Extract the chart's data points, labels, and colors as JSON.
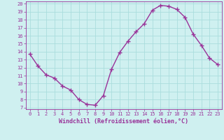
{
  "x": [
    0,
    1,
    2,
    3,
    4,
    5,
    6,
    7,
    8,
    9,
    10,
    11,
    12,
    13,
    14,
    15,
    16,
    17,
    18,
    19,
    20,
    21,
    22,
    23
  ],
  "y": [
    13.7,
    12.2,
    11.1,
    10.7,
    9.7,
    9.2,
    8.0,
    7.4,
    7.3,
    8.5,
    11.8,
    13.9,
    15.3,
    16.5,
    17.5,
    19.2,
    19.8,
    19.7,
    19.3,
    18.3,
    16.2,
    14.8,
    13.2,
    12.4
  ],
  "line_color": "#993399",
  "marker": "+",
  "markersize": 4,
  "linewidth": 1.0,
  "xlabel": "Windchill (Refroidissement éolien,°C)",
  "xlim": [
    -0.5,
    23.5
  ],
  "ylim": [
    6.8,
    20.3
  ],
  "yticks": [
    7,
    8,
    9,
    10,
    11,
    12,
    13,
    14,
    15,
    16,
    17,
    18,
    19,
    20
  ],
  "xticks": [
    0,
    1,
    2,
    3,
    4,
    5,
    6,
    7,
    8,
    9,
    10,
    11,
    12,
    13,
    14,
    15,
    16,
    17,
    18,
    19,
    20,
    21,
    22,
    23
  ],
  "bg_color": "#cff0f0",
  "grid_color": "#aadddd",
  "xlabel_color": "#993399",
  "tick_color": "#993399",
  "axis_color": "#993399",
  "tick_fontsize": 5.0,
  "xlabel_fontsize": 6.0
}
